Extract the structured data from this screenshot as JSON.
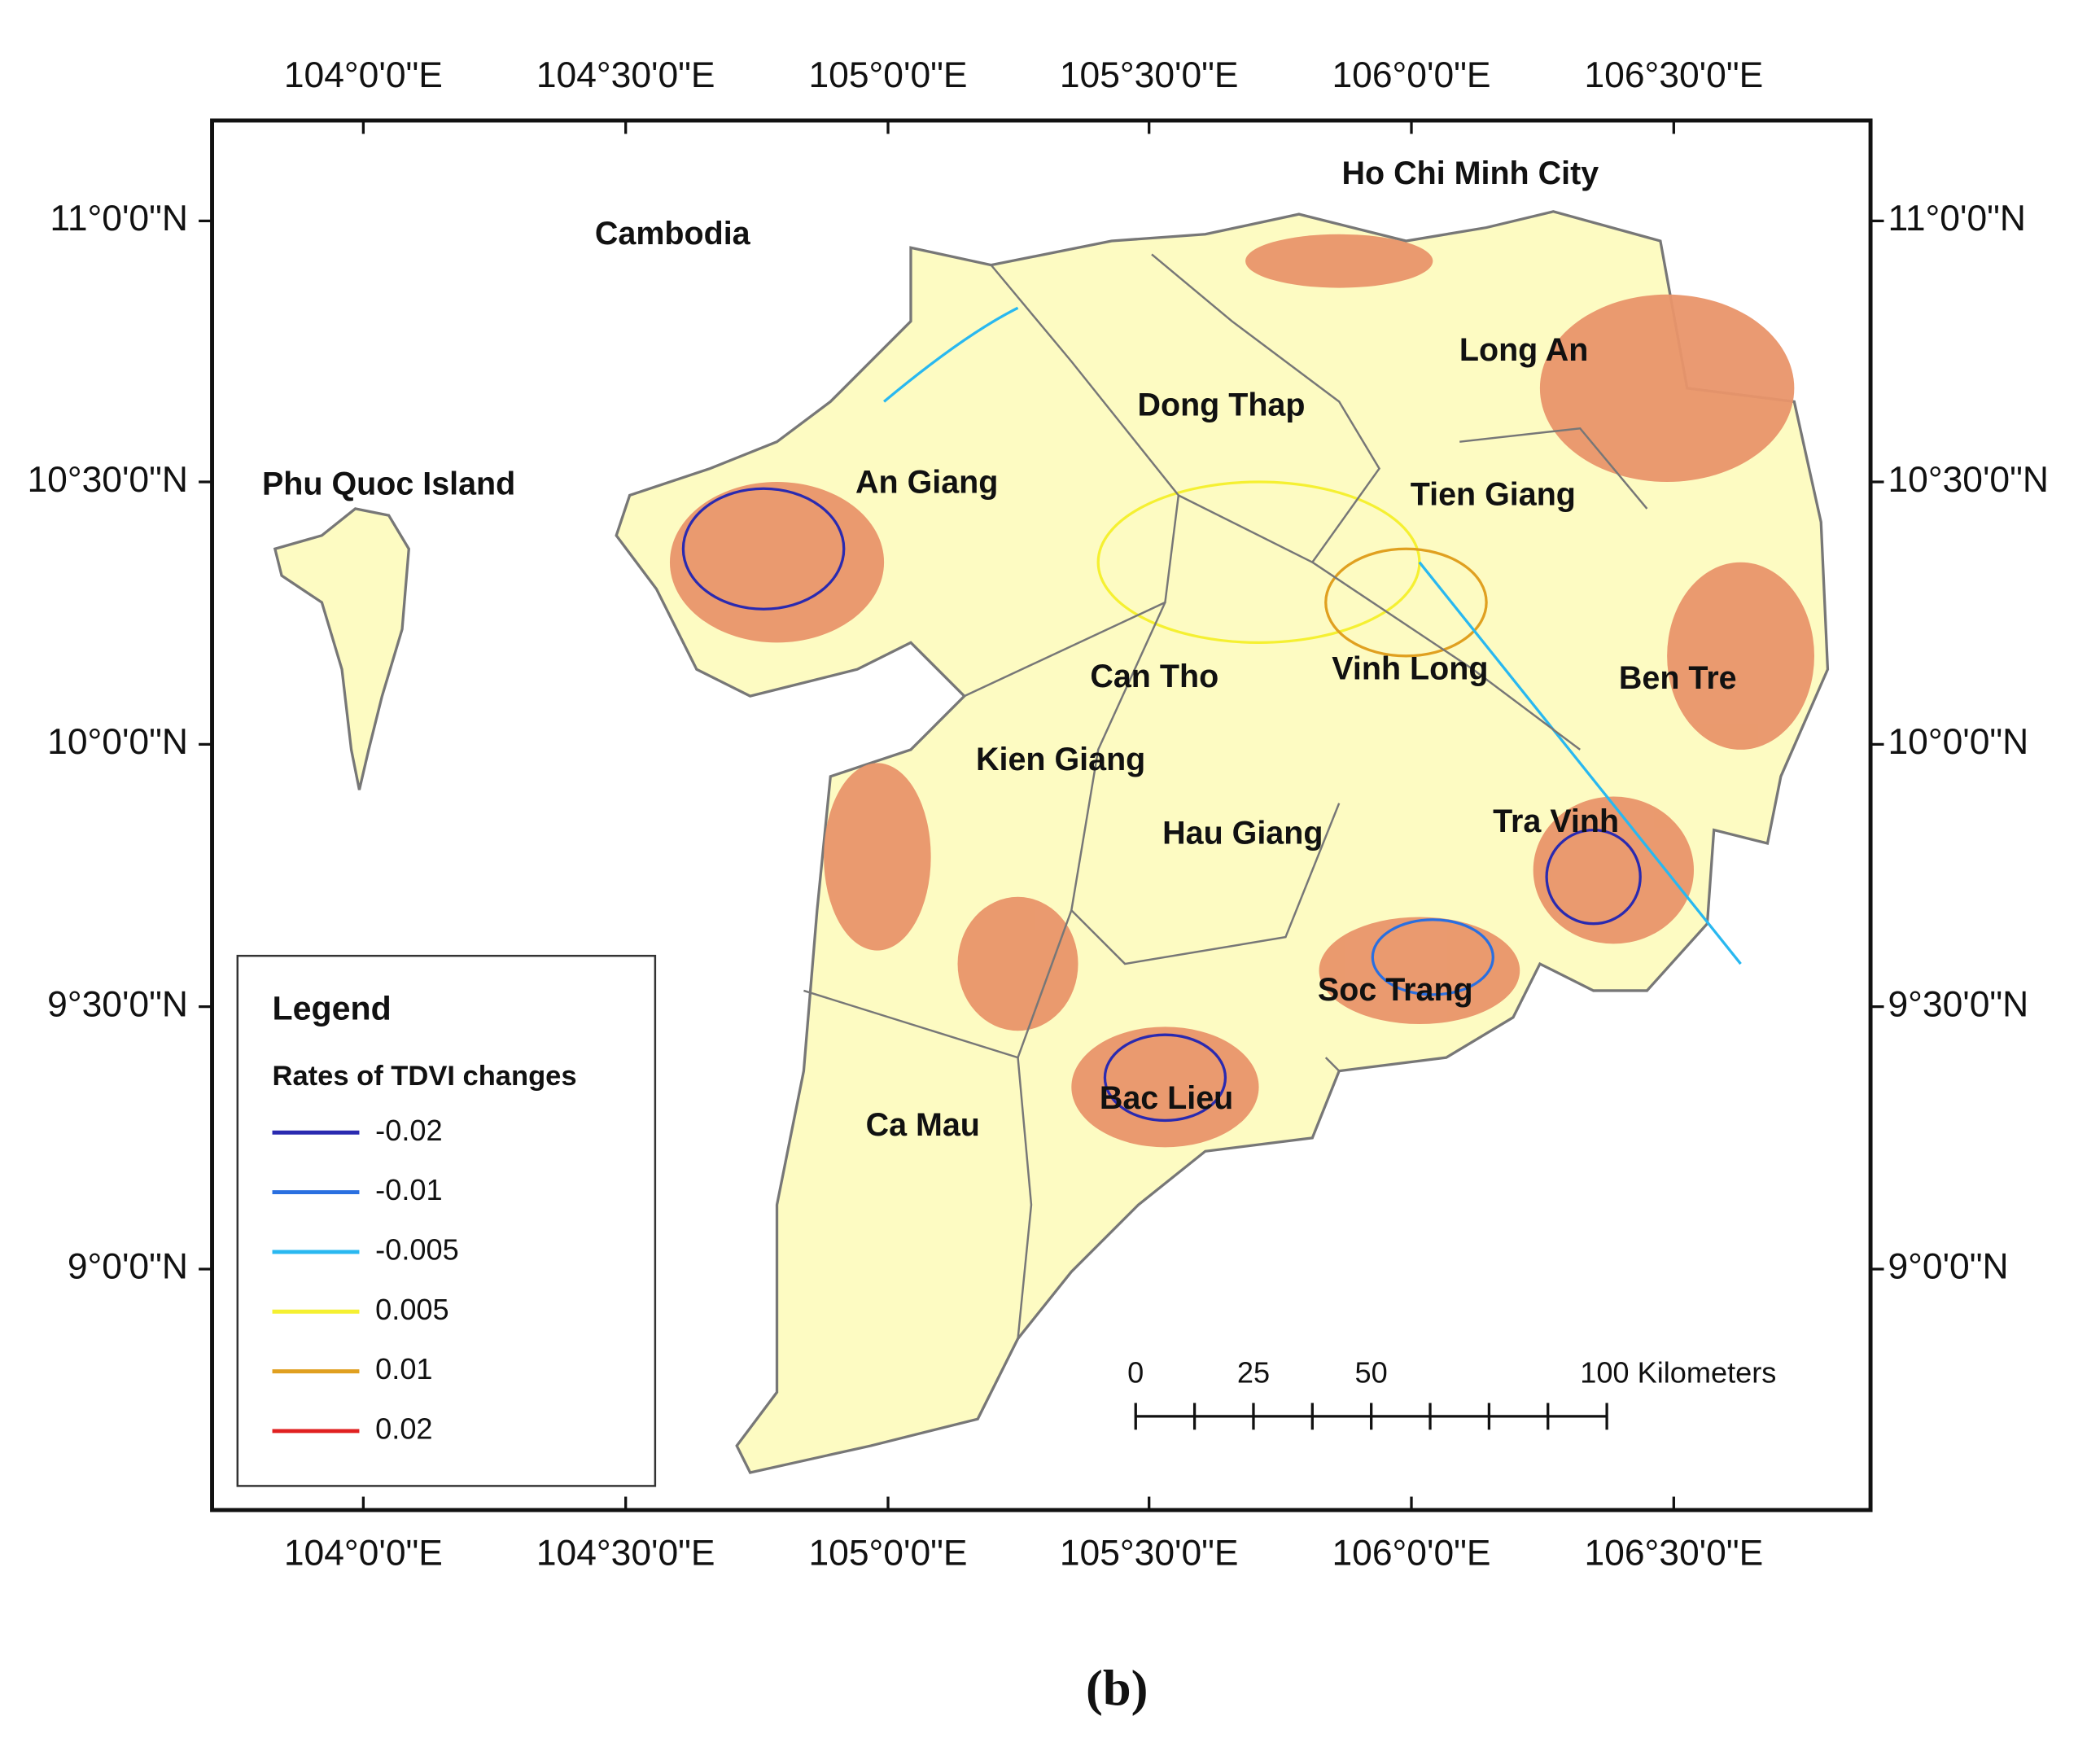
{
  "map": {
    "lon_labels": [
      "104°0'0\"E",
      "104°30'0\"E",
      "105°0'0\"E",
      "105°30'0\"E",
      "106°0'0\"E",
      "106°30'0\"E"
    ],
    "lat_labels": [
      "11°0'0\"N",
      "10°30'0\"N",
      "10°0'0\"N",
      "9°30'0\"N",
      "9°0'0\"N"
    ],
    "places": [
      "Cambodia",
      "Ho Chi Minh City",
      "Phu Quoc Island",
      "An Giang",
      "Long An",
      "Dong Thap",
      "Tien Giang",
      "Can Tho",
      "Vinh Long",
      "Ben Tre",
      "Kien Giang",
      "Hau Giang",
      "Tra Vinh",
      "Soc Trang",
      "Bac Lieu",
      "Ca Mau"
    ],
    "legend": {
      "title": "Legend",
      "subtitle": "Rates of TDVI changes",
      "items": [
        {
          "label": "-0.02",
          "color": "#2a2ab0"
        },
        {
          "label": "-0.01",
          "color": "#2a6fe0"
        },
        {
          "label": "-0.005",
          "color": "#29b8f0"
        },
        {
          "label": "0.005",
          "color": "#f5f032"
        },
        {
          "label": "0.01",
          "color": "#e0a020"
        },
        {
          "label": "0.02",
          "color": "#e02020"
        }
      ]
    },
    "scale_bar": {
      "labels": [
        "0",
        "25",
        "50",
        "100 Kilometers"
      ]
    },
    "caption": "(b)"
  }
}
